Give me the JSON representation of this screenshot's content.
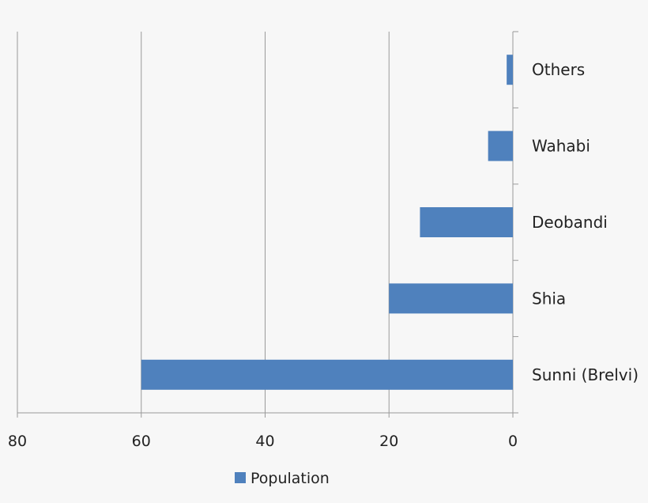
{
  "chart_data": {
    "type": "bar",
    "orientation": "horizontal",
    "x_reversed": true,
    "categories": [
      "Sunni (Brelvi)",
      "Shia",
      "Deobandi",
      "Wahabi",
      "Others"
    ],
    "series": [
      {
        "name": "Population",
        "values": [
          60,
          20,
          15,
          4,
          1
        ],
        "color": "#4f81bd"
      }
    ],
    "title": "",
    "xlabel": "",
    "ylabel": "",
    "xlim": [
      0,
      80
    ],
    "xticks": [
      80,
      60,
      40,
      20,
      0
    ],
    "grid": "vertical",
    "legend_position": "bottom"
  }
}
